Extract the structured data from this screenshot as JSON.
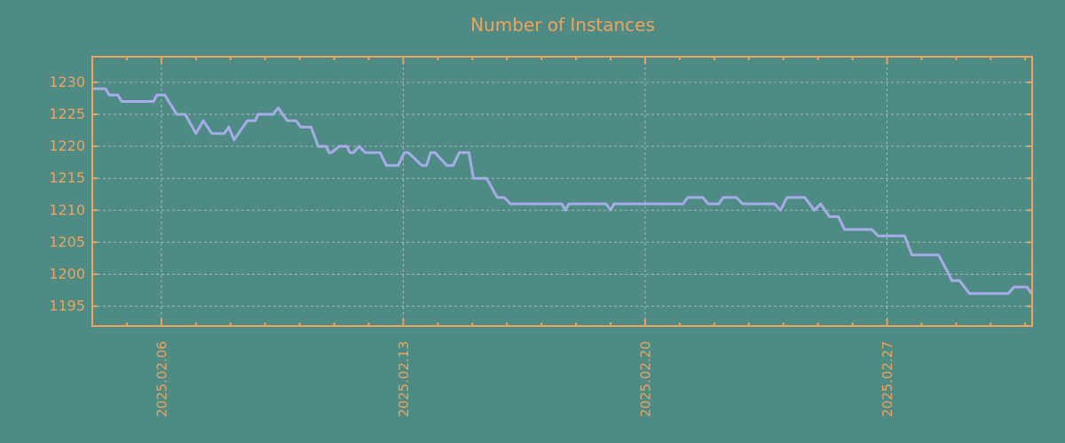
{
  "title": "Number of Instances",
  "colors": {
    "background": "#4e8b84",
    "axis": "#f0a35c",
    "line": "#a7abe8",
    "grid": "#b8c2bf"
  },
  "chart_data": {
    "type": "line",
    "title": "Number of Instances",
    "legend": null,
    "grid": true,
    "x_axis": {
      "note": "x values are day-of-February-2025 as floats; 29+ rolls into March",
      "range_days": [
        4.0,
        31.2
      ],
      "minor_tick_interval_days": 1,
      "major_ticks": [
        {
          "day": 6,
          "label": "2025.02.06"
        },
        {
          "day": 13,
          "label": "2025.02.13"
        },
        {
          "day": 20,
          "label": "2025.02.20"
        },
        {
          "day": 27,
          "label": "2025.02.27"
        }
      ]
    },
    "y_axis": {
      "ticks": [
        1195,
        1200,
        1205,
        1210,
        1215,
        1220,
        1225,
        1230
      ],
      "range": [
        1191.9,
        1234.0
      ]
    },
    "points": [
      [
        4.03,
        1229
      ],
      [
        4.38,
        1229
      ],
      [
        4.49,
        1228
      ],
      [
        4.74,
        1228
      ],
      [
        4.85,
        1227
      ],
      [
        5.77,
        1227
      ],
      [
        5.87,
        1228
      ],
      [
        6.1,
        1228
      ],
      [
        6.44,
        1225
      ],
      [
        6.69,
        1225
      ],
      [
        7.0,
        1222
      ],
      [
        7.21,
        1224
      ],
      [
        7.46,
        1222
      ],
      [
        7.82,
        1222
      ],
      [
        7.95,
        1223
      ],
      [
        8.1,
        1221
      ],
      [
        8.49,
        1224
      ],
      [
        8.72,
        1224
      ],
      [
        8.79,
        1225
      ],
      [
        9.23,
        1225
      ],
      [
        9.38,
        1226
      ],
      [
        9.64,
        1224
      ],
      [
        9.9,
        1224
      ],
      [
        10.03,
        1223
      ],
      [
        10.33,
        1223
      ],
      [
        10.54,
        1220
      ],
      [
        10.77,
        1220
      ],
      [
        10.85,
        1219
      ],
      [
        10.92,
        1219
      ],
      [
        11.15,
        1220
      ],
      [
        11.36,
        1220
      ],
      [
        11.46,
        1219
      ],
      [
        11.56,
        1219
      ],
      [
        11.72,
        1220
      ],
      [
        11.9,
        1219
      ],
      [
        12.33,
        1219
      ],
      [
        12.51,
        1217
      ],
      [
        12.85,
        1217
      ],
      [
        13.03,
        1219
      ],
      [
        13.15,
        1219
      ],
      [
        13.54,
        1217
      ],
      [
        13.67,
        1217
      ],
      [
        13.79,
        1219
      ],
      [
        13.92,
        1219
      ],
      [
        14.26,
        1217
      ],
      [
        14.44,
        1217
      ],
      [
        14.62,
        1219
      ],
      [
        14.9,
        1219
      ],
      [
        15.03,
        1215
      ],
      [
        15.41,
        1215
      ],
      [
        15.72,
        1212
      ],
      [
        15.92,
        1212
      ],
      [
        16.1,
        1211
      ],
      [
        17.59,
        1211
      ],
      [
        17.69,
        1210
      ],
      [
        17.79,
        1211
      ],
      [
        18.87,
        1211
      ],
      [
        19.0,
        1210
      ],
      [
        19.1,
        1211
      ],
      [
        21.1,
        1211
      ],
      [
        21.23,
        1212
      ],
      [
        21.67,
        1212
      ],
      [
        21.82,
        1211
      ],
      [
        22.13,
        1211
      ],
      [
        22.26,
        1212
      ],
      [
        22.64,
        1212
      ],
      [
        22.82,
        1211
      ],
      [
        23.74,
        1211
      ],
      [
        23.92,
        1210
      ],
      [
        24.1,
        1212
      ],
      [
        24.31,
        1212
      ],
      [
        24.62,
        1212
      ],
      [
        24.9,
        1210
      ],
      [
        25.08,
        1211
      ],
      [
        25.33,
        1209
      ],
      [
        25.59,
        1209
      ],
      [
        25.77,
        1207
      ],
      [
        26.56,
        1207
      ],
      [
        26.74,
        1206
      ],
      [
        27.51,
        1206
      ],
      [
        27.72,
        1203
      ],
      [
        28.49,
        1203
      ],
      [
        28.79,
        1200
      ],
      [
        28.87,
        1199
      ],
      [
        29.1,
        1199
      ],
      [
        29.38,
        1197
      ],
      [
        30.51,
        1197
      ],
      [
        30.67,
        1198
      ],
      [
        31.05,
        1198
      ],
      [
        31.18,
        1197
      ]
    ]
  }
}
